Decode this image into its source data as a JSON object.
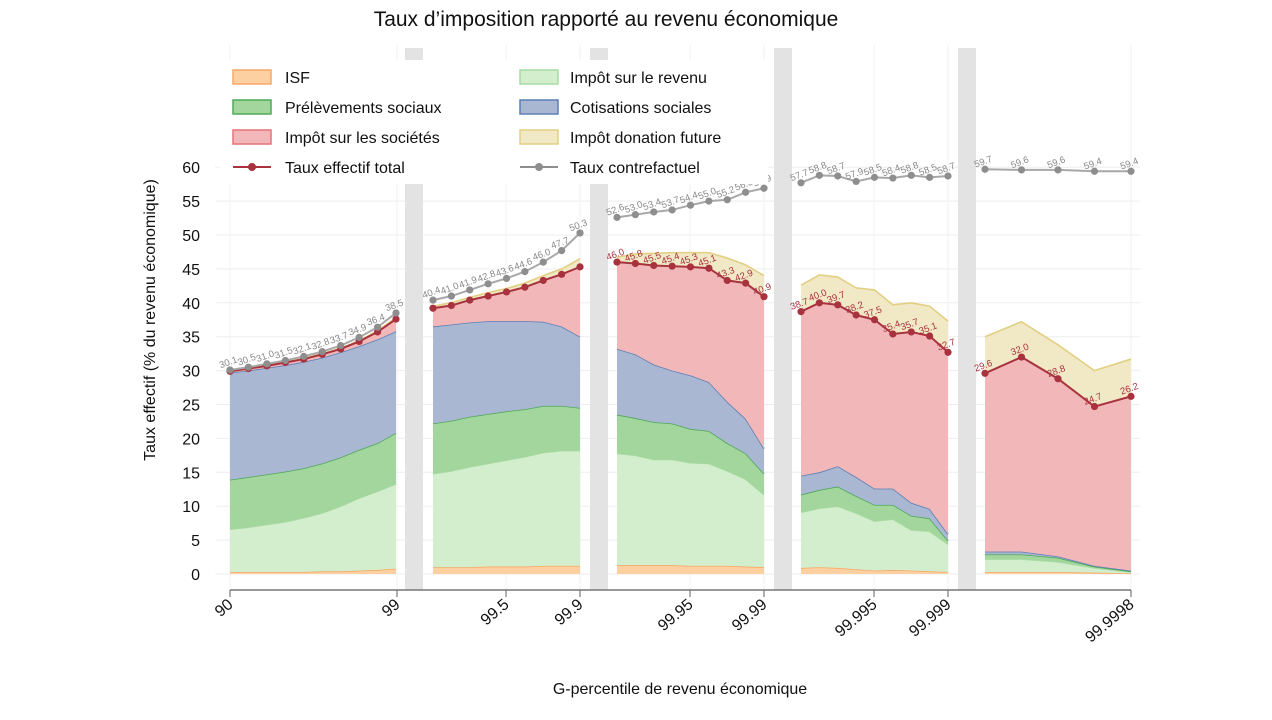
{
  "chart_data": {
    "type": "area",
    "stacked": true,
    "title": "Taux d’imposition rapporté au revenu économique",
    "xlabel": "G-percentile de revenu économique",
    "ylabel": "Taux effectif (% du revenu économique)",
    "ylim": [
      0,
      60
    ],
    "yticks": [
      "0",
      "5",
      "10",
      "15",
      "20",
      "25",
      "30",
      "35",
      "40",
      "45",
      "50",
      "55",
      "60"
    ],
    "xticks": [
      "90",
      "99",
      "99.5",
      "99.9",
      "99.95",
      "99.99",
      "99.995",
      "99.999",
      "99.9998"
    ],
    "grid": true,
    "legend_placement": "top-left",
    "legend": {
      "isf": "ISF",
      "ir": "Impôt sur le revenu",
      "ps": "Prélèvements sociaux",
      "cs": "Cotisations sociales",
      "is": "Impôt sur les sociétés",
      "don": "Impôt donation future",
      "eff": "Taux effectif total",
      "cf": "Taux contrefactuel"
    },
    "colors": {
      "isf": "#fdd0a2",
      "isf_line": "#f7a96a",
      "ir": "#d3eecd",
      "ir_line": "#a8dba2",
      "ps": "#a3d69d",
      "ps_line": "#4fa85a",
      "cs": "#a9b7d2",
      "cs_line": "#5d7fb5",
      "is": "#f2b7b8",
      "is_line": "#e57479",
      "don": "#f1e8c6",
      "don_line": "#e2cf82",
      "eff": "#a8323e",
      "cf": "#8e8e8e"
    },
    "panels": [
      {
        "range": [
          "90",
          "99"
        ],
        "isf": [
          0.3,
          0.3,
          0.3,
          0.3,
          0.3,
          0.4,
          0.4,
          0.5,
          0.6,
          0.8
        ],
        "ir": [
          6.3,
          6.6,
          7.0,
          7.4,
          8.0,
          8.6,
          9.6,
          10.7,
          11.6,
          12.5
        ],
        "ps": [
          7.3,
          7.4,
          7.4,
          7.4,
          7.3,
          7.3,
          7.2,
          7.1,
          7.1,
          7.5
        ],
        "cs": [
          15.8,
          15.7,
          15.7,
          15.7,
          15.7,
          15.6,
          15.5,
          15.3,
          15.3,
          15.0
        ],
        "is": [
          0.2,
          0.3,
          0.3,
          0.4,
          0.4,
          0.5,
          0.5,
          0.7,
          1.1,
          1.8
        ],
        "don": [
          0.1,
          0.1,
          0.1,
          0.1,
          0.1,
          0.1,
          0.1,
          0.1,
          0.2,
          0.2
        ],
        "eff_labels": [],
        "cf": [
          "30.1",
          "30.5",
          "31.0",
          "31.5",
          "32.1",
          "32.8",
          "33.7",
          "34.9",
          "36.4",
          "38.5"
        ]
      },
      {
        "range": [
          "99",
          "99.9"
        ],
        "isf": [
          1.0,
          1.0,
          1.0,
          1.1,
          1.1,
          1.1,
          1.2,
          1.2,
          1.2
        ],
        "ir": [
          13.8,
          14.2,
          14.8,
          15.2,
          15.7,
          16.2,
          16.7,
          17.0,
          17.0
        ],
        "ps": [
          7.4,
          7.4,
          7.4,
          7.3,
          7.2,
          7.0,
          6.9,
          6.6,
          6.3
        ],
        "cs": [
          14.3,
          14.2,
          13.9,
          13.7,
          13.3,
          13.0,
          12.4,
          11.7,
          10.5
        ],
        "is": [
          2.7,
          2.8,
          3.3,
          3.7,
          4.3,
          5.0,
          6.1,
          7.7,
          10.3
        ],
        "don": [
          0.3,
          0.4,
          0.4,
          0.5,
          0.5,
          0.6,
          0.7,
          0.8,
          1.2
        ],
        "eff_labels": [],
        "cf": [
          "40.4",
          "41.0",
          "41.9",
          "42.8",
          "43.6",
          "44.6",
          "46.0",
          "47.7",
          "50.3"
        ]
      },
      {
        "range": [
          "99.9",
          "99.99"
        ],
        "isf": [
          1.3,
          1.3,
          1.3,
          1.3,
          1.2,
          1.2,
          1.2,
          1.1,
          1.0
        ],
        "ir": [
          16.5,
          16.2,
          15.6,
          15.6,
          15.2,
          15.1,
          14.0,
          12.9,
          10.7
        ],
        "ps": [
          5.7,
          5.5,
          5.5,
          5.3,
          5.0,
          4.8,
          4.1,
          3.8,
          3.1
        ],
        "cs": [
          9.7,
          9.4,
          8.5,
          7.8,
          7.9,
          7.2,
          6.1,
          5.1,
          3.7
        ],
        "is": [
          12.8,
          13.4,
          14.6,
          15.4,
          16.0,
          16.8,
          17.9,
          20.0,
          22.4
        ],
        "don": [
          0.7,
          1.4,
          1.8,
          2.0,
          2.1,
          2.3,
          3.3,
          2.7,
          3.1
        ],
        "eff_labels": [
          "46.0",
          "45.8",
          "45.5",
          "45.4",
          "45.3",
          "45.1",
          "43.3",
          "42.9",
          "40.9"
        ],
        "cf": [
          "52.6",
          "53.0",
          "53.4",
          "53.7",
          "54.4",
          "55.0",
          "55.2",
          "56.3",
          "56.9"
        ]
      },
      {
        "range": [
          "99.99",
          "99.999"
        ],
        "isf": [
          0.9,
          1.0,
          0.9,
          0.7,
          0.5,
          0.6,
          0.5,
          0.4,
          0.3
        ],
        "ir": [
          8.2,
          8.7,
          9.1,
          8.3,
          7.3,
          7.5,
          6.0,
          5.9,
          4.1
        ],
        "ps": [
          2.6,
          2.7,
          2.9,
          2.5,
          2.4,
          2.1,
          2.1,
          1.9,
          0.5
        ],
        "cs": [
          2.8,
          2.6,
          3.0,
          2.8,
          2.4,
          2.4,
          1.9,
          1.4,
          1.0
        ],
        "is": [
          24.2,
          25.0,
          23.8,
          23.9,
          24.9,
          22.8,
          25.2,
          25.5,
          26.8
        ],
        "don": [
          3.9,
          4.1,
          4.1,
          4.0,
          4.4,
          4.3,
          4.3,
          4.4,
          4.6
        ],
        "eff_labels": [
          "38.7",
          "40.0",
          "39.7",
          "38.2",
          "37.5",
          "35.4",
          "35.7",
          "35.1",
          "32.7"
        ],
        "cf": [
          "57.7",
          "58.8",
          "58.7",
          "57.9",
          "58.5",
          "58.4",
          "58.8",
          "58.5",
          "58.7"
        ]
      },
      {
        "range": [
          "99.999",
          "99.9998"
        ],
        "isf": [
          0.3,
          0.3,
          0.3,
          0.2,
          0.1
        ],
        "ir": [
          1.9,
          1.9,
          1.5,
          0.7,
          0.2
        ],
        "ps": [
          0.7,
          0.7,
          0.6,
          0.2,
          0.1
        ],
        "cs": [
          0.4,
          0.4,
          0.2,
          0.1,
          0.1
        ],
        "is": [
          26.3,
          28.7,
          26.2,
          23.5,
          25.7
        ],
        "don": [
          5.4,
          5.2,
          5.0,
          5.3,
          5.5
        ],
        "eff_labels": [
          "29.6",
          "32.0",
          "28.8",
          "24.7",
          "26.2"
        ],
        "cf": [
          "59.7",
          "59.6",
          "59.6",
          "59.4",
          "59.4"
        ]
      }
    ]
  }
}
